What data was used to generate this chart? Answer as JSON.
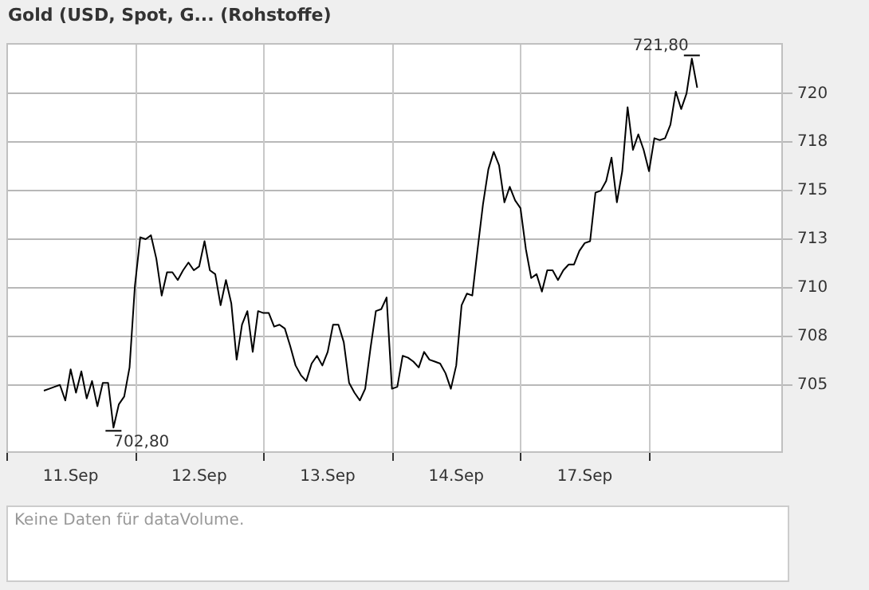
{
  "chart_data": {
    "type": "line",
    "title": "Gold (USD, Spot, G... (Rohstoffe)",
    "categories": [
      null,
      null,
      null,
      null,
      null,
      null,
      null,
      null,
      null,
      null,
      null,
      null,
      "11.Sep",
      null,
      null,
      null,
      null,
      null,
      null,
      null,
      null,
      null,
      null,
      null,
      null,
      null,
      null,
      null,
      null,
      null,
      null,
      null,
      null,
      null,
      null,
      null,
      "12.Sep",
      null,
      null,
      null,
      null,
      null,
      null,
      null,
      null,
      null,
      null,
      null,
      null,
      null,
      null,
      null,
      null,
      null,
      null,
      null,
      null,
      null,
      null,
      null,
      "13.Sep",
      null,
      null,
      null,
      null,
      null,
      null,
      null,
      null,
      null,
      null,
      null,
      null,
      null,
      null,
      null,
      null,
      null,
      null,
      null,
      null,
      null,
      null,
      null,
      "14.Sep",
      null,
      null,
      null,
      null,
      null,
      null,
      null,
      null,
      null,
      null,
      null,
      null,
      null,
      null,
      null,
      null,
      null,
      null,
      null,
      null,
      null,
      null,
      null,
      "17.Sep",
      null,
      null,
      null,
      null,
      null,
      null,
      null,
      null,
      null,
      null,
      null,
      null,
      null,
      null,
      null,
      null,
      null,
      null,
      null,
      null,
      null,
      null,
      null,
      null,
      null,
      null,
      null,
      null,
      null,
      null,
      null,
      null,
      null,
      null,
      null,
      null,
      null
    ],
    "values": [
      null,
      null,
      null,
      null,
      null,
      null,
      null,
      704.7,
      704.8,
      704.9,
      705.0,
      704.2,
      705.8,
      704.6,
      705.7,
      704.3,
      705.2,
      703.9,
      705.1,
      705.1,
      702.8,
      704.0,
      704.4,
      705.9,
      710.1,
      712.6,
      712.5,
      712.7,
      711.5,
      709.6,
      710.8,
      710.8,
      710.4,
      710.9,
      711.3,
      710.9,
      711.1,
      712.4,
      710.9,
      710.7,
      709.1,
      710.4,
      709.2,
      706.3,
      708.1,
      708.8,
      706.7,
      708.8,
      708.7,
      708.7,
      708.0,
      708.1,
      707.9,
      707.0,
      706.0,
      705.5,
      705.2,
      706.1,
      706.5,
      706.0,
      706.7,
      708.1,
      708.1,
      707.2,
      705.1,
      704.6,
      704.2,
      704.8,
      706.9,
      708.8,
      708.9,
      709.5,
      704.8,
      704.9,
      706.5,
      706.4,
      706.2,
      705.9,
      706.7,
      706.3,
      706.2,
      706.1,
      705.6,
      704.8,
      706.0,
      709.1,
      709.7,
      709.6,
      712.0,
      714.3,
      716.1,
      717.0,
      716.3,
      714.4,
      715.2,
      714.5,
      714.1,
      712.0,
      710.5,
      710.7,
      709.8,
      710.9,
      710.9,
      710.4,
      710.9,
      711.2,
      711.2,
      711.9,
      712.3,
      712.4,
      714.9,
      715.0,
      715.5,
      716.7,
      714.4,
      716.0,
      719.3,
      717.1,
      717.9,
      717.1,
      716.0,
      717.7,
      717.6,
      717.7,
      718.4,
      720.1,
      719.2,
      720.0,
      721.8,
      720.3,
      null,
      null,
      null,
      null,
      null,
      null,
      null,
      null,
      null,
      null,
      null,
      null,
      null,
      null,
      null,
      null
    ],
    "color": "#000000",
    "marker": "none",
    "line_style": "solid",
    "ylim": [
      701.5,
      722.6
    ],
    "yticks": [
      705,
      {
        "value": 707.5,
        "label": "708"
      },
      710,
      {
        "value": 712.5,
        "label": "713"
      },
      715,
      {
        "value": 717.5,
        "label": "718"
      },
      720
    ],
    "grid": true,
    "annotations": [
      "702,80",
      "721,80",
      "Keine Daten für dataVolume."
    ]
  }
}
